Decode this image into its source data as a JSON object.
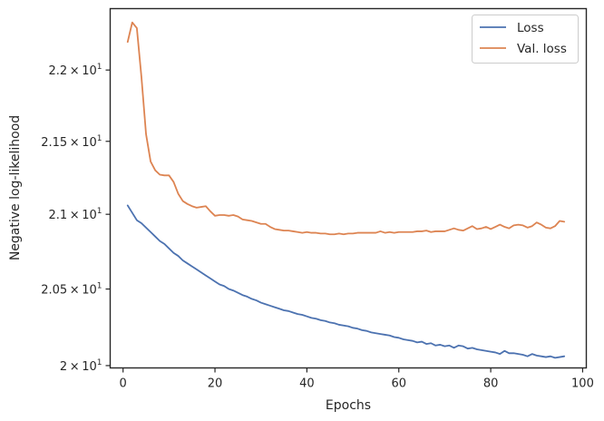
{
  "chart_data": {
    "type": "line",
    "title": "",
    "xlabel": "Epochs",
    "ylabel": "Negative log-likelihood",
    "xlim": [
      -2.8,
      100.8
    ],
    "ylim": [
      19.985,
      22.44
    ],
    "yscale": "log",
    "grid": false,
    "legend_position": "top-right",
    "x_ticks": [
      0,
      20,
      40,
      60,
      80,
      100
    ],
    "x_tick_labels": [
      "0",
      "20",
      "40",
      "60",
      "80",
      "100"
    ],
    "y_ticks": [
      {
        "value": 22.0,
        "mantissa": "2.2",
        "exponent": "1"
      },
      {
        "value": 21.5,
        "mantissa": "2.15",
        "exponent": "1"
      },
      {
        "value": 21.0,
        "mantissa": "2.1",
        "exponent": "1"
      },
      {
        "value": 20.5,
        "mantissa": "2.05",
        "exponent": "1"
      },
      {
        "value": 20.0,
        "mantissa": "2",
        "exponent": "1"
      }
    ],
    "y_tick_times": "×",
    "y_tick_base": "10",
    "x": [
      1,
      2,
      3,
      4,
      5,
      6,
      7,
      8,
      9,
      10,
      11,
      12,
      13,
      14,
      15,
      16,
      17,
      18,
      19,
      20,
      21,
      22,
      23,
      24,
      25,
      26,
      27,
      28,
      29,
      30,
      31,
      32,
      33,
      34,
      35,
      36,
      37,
      38,
      39,
      40,
      41,
      42,
      43,
      44,
      45,
      46,
      47,
      48,
      49,
      50,
      51,
      52,
      53,
      54,
      55,
      56,
      57,
      58,
      59,
      60,
      61,
      62,
      63,
      64,
      65,
      66,
      67,
      68,
      69,
      70,
      71,
      72,
      73,
      74,
      75,
      76,
      77,
      78,
      79,
      80,
      81,
      82,
      83,
      84,
      85,
      86,
      87,
      88,
      89,
      90,
      91,
      92,
      93,
      94,
      95,
      96
    ],
    "series": [
      {
        "name": "Loss",
        "color": "#4c72b0",
        "values": [
          21.06,
          21.01,
          20.96,
          20.94,
          20.91,
          20.88,
          20.85,
          20.82,
          20.8,
          20.77,
          20.74,
          20.72,
          20.69,
          20.67,
          20.65,
          20.63,
          20.61,
          20.59,
          20.57,
          20.55,
          20.53,
          20.52,
          20.5,
          20.49,
          20.475,
          20.46,
          20.45,
          20.435,
          20.425,
          20.41,
          20.4,
          20.39,
          20.38,
          20.37,
          20.36,
          20.355,
          20.345,
          20.335,
          20.33,
          20.32,
          20.31,
          20.305,
          20.295,
          20.29,
          20.28,
          20.275,
          20.265,
          20.26,
          20.255,
          20.245,
          20.24,
          20.23,
          20.225,
          20.215,
          20.21,
          20.205,
          20.2,
          20.195,
          20.185,
          20.18,
          20.17,
          20.165,
          20.16,
          20.15,
          20.155,
          20.14,
          20.145,
          20.13,
          20.135,
          20.125,
          20.13,
          20.115,
          20.13,
          20.125,
          20.11,
          20.115,
          20.105,
          20.1,
          20.095,
          20.09,
          20.085,
          20.075,
          20.095,
          20.08,
          20.08,
          20.075,
          20.07,
          20.06,
          20.075,
          20.065,
          20.06,
          20.055,
          20.06,
          20.05,
          20.055,
          20.06
        ]
      },
      {
        "name": "Val. loss",
        "color": "#dd8452",
        "values": [
          22.2,
          22.34,
          22.3,
          21.95,
          21.55,
          21.36,
          21.3,
          21.27,
          21.265,
          21.265,
          21.22,
          21.14,
          21.09,
          21.07,
          21.055,
          21.045,
          21.05,
          21.055,
          21.02,
          20.99,
          20.995,
          20.995,
          20.99,
          20.995,
          20.985,
          20.965,
          20.96,
          20.955,
          20.945,
          20.935,
          20.935,
          20.915,
          20.9,
          20.895,
          20.89,
          20.89,
          20.885,
          20.88,
          20.875,
          20.88,
          20.875,
          20.875,
          20.87,
          20.87,
          20.865,
          20.865,
          20.87,
          20.865,
          20.87,
          20.87,
          20.875,
          20.875,
          20.875,
          20.875,
          20.875,
          20.885,
          20.875,
          20.88,
          20.875,
          20.88,
          20.88,
          20.88,
          20.88,
          20.885,
          20.885,
          20.89,
          20.88,
          20.885,
          20.885,
          20.885,
          20.895,
          20.905,
          20.895,
          20.89,
          20.905,
          20.92,
          20.9,
          20.905,
          20.915,
          20.9,
          20.915,
          20.93,
          20.915,
          20.905,
          20.925,
          20.93,
          20.925,
          20.91,
          20.92,
          20.945,
          20.93,
          20.91,
          20.905,
          20.92,
          20.955,
          20.95
        ]
      }
    ]
  }
}
